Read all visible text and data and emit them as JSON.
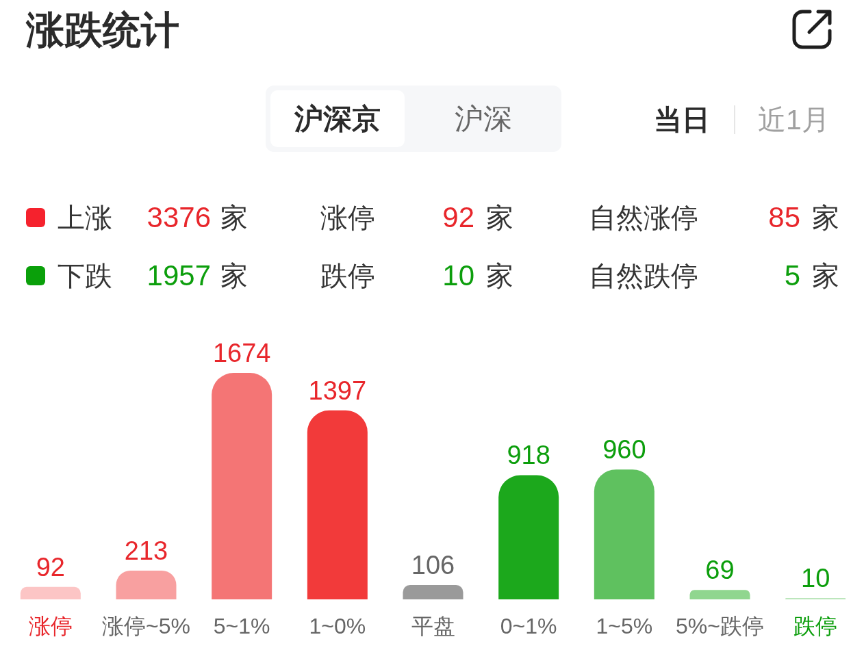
{
  "chart_data": {
    "type": "bar",
    "title": "涨跌统计",
    "categories": [
      "涨停",
      "涨停~5%",
      "5~1%",
      "1~0%",
      "平盘",
      "0~1%",
      "1~5%",
      "5%~跌停",
      "跌停"
    ],
    "values": [
      92,
      213,
      1674,
      1397,
      106,
      918,
      960,
      69,
      10
    ],
    "colors": [
      "#fcc5c5",
      "#f8a0a0",
      "#f47575",
      "#f23a3a",
      "#9a9a9a",
      "#1ca81c",
      "#5fc15f",
      "#90d68f",
      "#bce6bc"
    ],
    "data_labels": true,
    "annotations": [
      "沪深京",
      "沪深",
      "当日",
      "近1月",
      "上涨 3376 家",
      "涨停 92 家",
      "自然涨停 85 家",
      "下跌 1957 家",
      "跌停 10 家",
      "自然跌停 5 家"
    ]
  }
}
